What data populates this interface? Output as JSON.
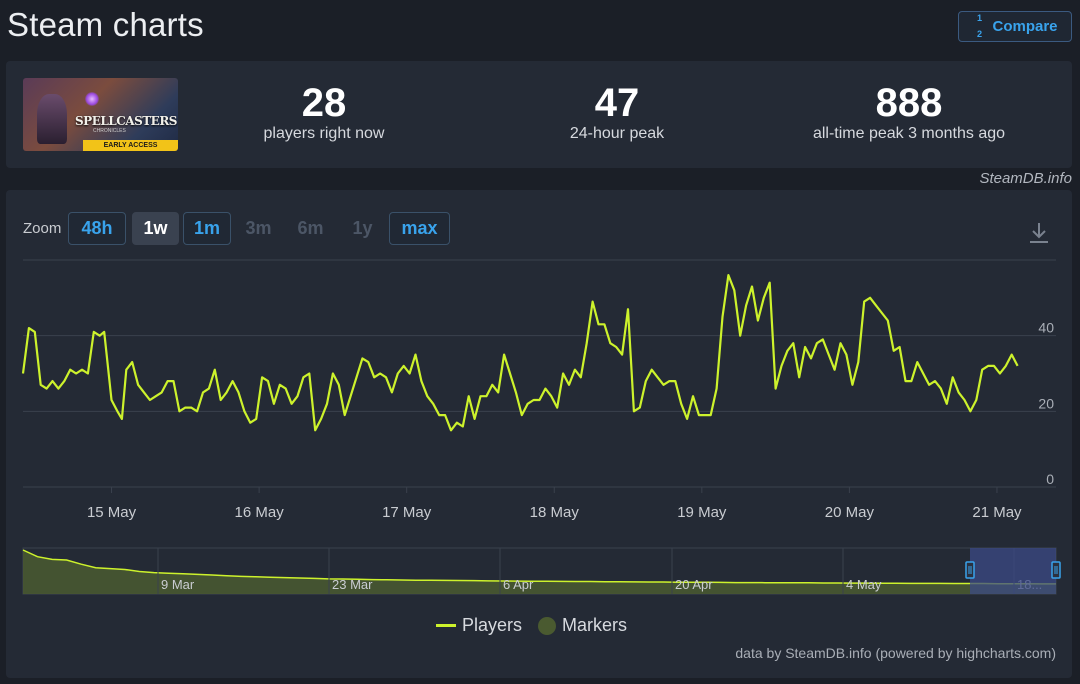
{
  "page": {
    "title": "Steam charts"
  },
  "compare": {
    "label": "Compare",
    "icon": "fraction-compare-icon"
  },
  "stats": [
    {
      "value": "28",
      "label": "players right now"
    },
    {
      "value": "47",
      "label": "24-hour peak"
    },
    {
      "value": "888",
      "label": "all-time peak 3 months ago"
    }
  ],
  "game": {
    "logo_text": "SPELLCASTERS",
    "logo_sub": "CHRONICLES",
    "badge": "EARLY ACCESS"
  },
  "credit_top": "SteamDB.info",
  "zoom": {
    "label": "Zoom",
    "buttons": [
      {
        "label": "48h",
        "state": "outlined"
      },
      {
        "label": "1w",
        "state": "selected"
      },
      {
        "label": "1m",
        "state": "outlined"
      },
      {
        "label": "3m",
        "state": "disabled"
      },
      {
        "label": "6m",
        "state": "disabled"
      },
      {
        "label": "1y",
        "state": "disabled"
      },
      {
        "label": "max",
        "state": "outlined"
      }
    ]
  },
  "legend": {
    "players": "Players",
    "markers": "Markers"
  },
  "credit_bottom": "data by SteamDB.info (powered by highcharts.com)",
  "colors": {
    "line": "#cdf22c",
    "grid": "#3a414d",
    "navigator_fill": "#4a5a30",
    "selection": "#3b4a85"
  },
  "chart_data": {
    "type": "line",
    "title": "",
    "series": [
      {
        "name": "Players"
      }
    ],
    "ylim": [
      0,
      60
    ],
    "y_ticks": [
      0,
      20,
      40
    ],
    "x_ticks": [
      "15 May",
      "16 May",
      "17 May",
      "18 May",
      "19 May",
      "20 May",
      "21 May"
    ],
    "x_start_day": 14.4,
    "x_end_day": 21.4,
    "grid": true,
    "points": [
      [
        14.4,
        30
      ],
      [
        14.44,
        42
      ],
      [
        14.48,
        41
      ],
      [
        14.52,
        27
      ],
      [
        14.56,
        26
      ],
      [
        14.6,
        28
      ],
      [
        14.64,
        26
      ],
      [
        14.68,
        28
      ],
      [
        14.72,
        31
      ],
      [
        14.76,
        30
      ],
      [
        14.8,
        31
      ],
      [
        14.84,
        30
      ],
      [
        14.88,
        41
      ],
      [
        14.92,
        40
      ],
      [
        14.95,
        41
      ],
      [
        15.0,
        23
      ],
      [
        15.04,
        20
      ],
      [
        15.07,
        18
      ],
      [
        15.1,
        31
      ],
      [
        15.14,
        33
      ],
      [
        15.18,
        27
      ],
      [
        15.22,
        25
      ],
      [
        15.26,
        23
      ],
      [
        15.3,
        24
      ],
      [
        15.34,
        25
      ],
      [
        15.38,
        28
      ],
      [
        15.42,
        28
      ],
      [
        15.46,
        20
      ],
      [
        15.5,
        21
      ],
      [
        15.54,
        21
      ],
      [
        15.58,
        20
      ],
      [
        15.62,
        25
      ],
      [
        15.66,
        26
      ],
      [
        15.7,
        31
      ],
      [
        15.74,
        23
      ],
      [
        15.78,
        25
      ],
      [
        15.82,
        28
      ],
      [
        15.86,
        25
      ],
      [
        15.9,
        20
      ],
      [
        15.94,
        17
      ],
      [
        15.98,
        18
      ],
      [
        16.02,
        29
      ],
      [
        16.06,
        28
      ],
      [
        16.1,
        22
      ],
      [
        16.14,
        27
      ],
      [
        16.18,
        26
      ],
      [
        16.22,
        22
      ],
      [
        16.26,
        24
      ],
      [
        16.3,
        29
      ],
      [
        16.34,
        30
      ],
      [
        16.38,
        15
      ],
      [
        16.42,
        18
      ],
      [
        16.46,
        22
      ],
      [
        16.5,
        30
      ],
      [
        16.54,
        27
      ],
      [
        16.58,
        19
      ],
      [
        16.62,
        24
      ],
      [
        16.66,
        29
      ],
      [
        16.7,
        34
      ],
      [
        16.74,
        33
      ],
      [
        16.78,
        29
      ],
      [
        16.82,
        30
      ],
      [
        16.86,
        29
      ],
      [
        16.9,
        25
      ],
      [
        16.94,
        30
      ],
      [
        16.98,
        32
      ],
      [
        17.02,
        30
      ],
      [
        17.06,
        35
      ],
      [
        17.1,
        28
      ],
      [
        17.14,
        24
      ],
      [
        17.18,
        22
      ],
      [
        17.22,
        19
      ],
      [
        17.26,
        19
      ],
      [
        17.3,
        15
      ],
      [
        17.34,
        17
      ],
      [
        17.38,
        16
      ],
      [
        17.42,
        24
      ],
      [
        17.46,
        18
      ],
      [
        17.5,
        24
      ],
      [
        17.54,
        24
      ],
      [
        17.58,
        27
      ],
      [
        17.62,
        25
      ],
      [
        17.66,
        35
      ],
      [
        17.7,
        30
      ],
      [
        17.74,
        25
      ],
      [
        17.78,
        19
      ],
      [
        17.82,
        22
      ],
      [
        17.86,
        23
      ],
      [
        17.9,
        23
      ],
      [
        17.94,
        26
      ],
      [
        17.98,
        24
      ],
      [
        18.02,
        21
      ],
      [
        18.06,
        30
      ],
      [
        18.1,
        27
      ],
      [
        18.14,
        31
      ],
      [
        18.18,
        29
      ],
      [
        18.22,
        38
      ],
      [
        18.26,
        49
      ],
      [
        18.3,
        43
      ],
      [
        18.34,
        43
      ],
      [
        18.38,
        38
      ],
      [
        18.42,
        37
      ],
      [
        18.46,
        35
      ],
      [
        18.5,
        47
      ],
      [
        18.54,
        20
      ],
      [
        18.58,
        21
      ],
      [
        18.62,
        28
      ],
      [
        18.66,
        31
      ],
      [
        18.7,
        29
      ],
      [
        18.74,
        27
      ],
      [
        18.78,
        28
      ],
      [
        18.82,
        28
      ],
      [
        18.86,
        22
      ],
      [
        18.9,
        18
      ],
      [
        18.94,
        24
      ],
      [
        18.98,
        19
      ],
      [
        19.02,
        19
      ],
      [
        19.06,
        19
      ],
      [
        19.1,
        26
      ],
      [
        19.14,
        45
      ],
      [
        19.18,
        56
      ],
      [
        19.22,
        52
      ],
      [
        19.26,
        40
      ],
      [
        19.3,
        48
      ],
      [
        19.34,
        53
      ],
      [
        19.38,
        44
      ],
      [
        19.42,
        50
      ],
      [
        19.46,
        54
      ],
      [
        19.5,
        26
      ],
      [
        19.54,
        32
      ],
      [
        19.58,
        36
      ],
      [
        19.62,
        38
      ],
      [
        19.66,
        29
      ],
      [
        19.7,
        37
      ],
      [
        19.74,
        34
      ],
      [
        19.78,
        38
      ],
      [
        19.82,
        39
      ],
      [
        19.86,
        35
      ],
      [
        19.9,
        31
      ],
      [
        19.94,
        38
      ],
      [
        19.98,
        35
      ],
      [
        20.02,
        27
      ],
      [
        20.06,
        33
      ],
      [
        20.1,
        49
      ],
      [
        20.14,
        50
      ],
      [
        20.18,
        48
      ],
      [
        20.22,
        46
      ],
      [
        20.26,
        44
      ],
      [
        20.3,
        36
      ],
      [
        20.34,
        37
      ],
      [
        20.38,
        28
      ],
      [
        20.42,
        28
      ],
      [
        20.46,
        33
      ],
      [
        20.5,
        30
      ],
      [
        20.54,
        27
      ],
      [
        20.58,
        28
      ],
      [
        20.62,
        26
      ],
      [
        20.66,
        22
      ],
      [
        20.7,
        29
      ],
      [
        20.74,
        25
      ],
      [
        20.78,
        23
      ],
      [
        20.82,
        20
      ],
      [
        20.86,
        23
      ],
      [
        20.9,
        31
      ],
      [
        20.94,
        32
      ],
      [
        20.98,
        32
      ],
      [
        21.02,
        30
      ],
      [
        21.06,
        32
      ],
      [
        21.1,
        35
      ],
      [
        21.14,
        32
      ]
    ],
    "navigator": {
      "x_ticks": [
        "9 Mar",
        "23 Mar",
        "6 Apr",
        "20 Apr",
        "4 May",
        "18..."
      ],
      "values": [
        888,
        600,
        500,
        480,
        350,
        260,
        240,
        220,
        180,
        160,
        150,
        140,
        130,
        120,
        110,
        100,
        95,
        90,
        85,
        80,
        75,
        70,
        68,
        65,
        62,
        60,
        58,
        56,
        55,
        54,
        53,
        52,
        50,
        49,
        48,
        47,
        46,
        45,
        44,
        44,
        43,
        42,
        41,
        40,
        40,
        39,
        38,
        38,
        37,
        36,
        36,
        35,
        35,
        34,
        34,
        33,
        33,
        32,
        32,
        31,
        31,
        30,
        30,
        30,
        29,
        29,
        29,
        28,
        28,
        28,
        27,
        27
      ]
    }
  }
}
